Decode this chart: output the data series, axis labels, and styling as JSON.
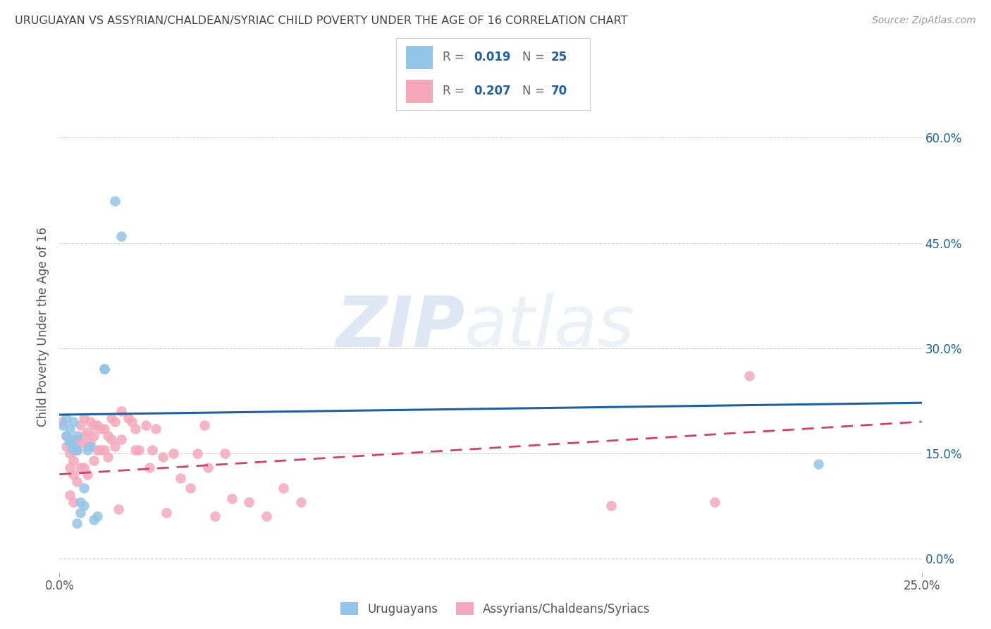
{
  "title": "URUGUAYAN VS ASSYRIAN/CHALDEAN/SYRIAC CHILD POVERTY UNDER THE AGE OF 16 CORRELATION CHART",
  "source": "Source: ZipAtlas.com",
  "ylabel": "Child Poverty Under the Age of 16",
  "xlim": [
    0.0,
    0.25
  ],
  "ylim": [
    -0.02,
    0.68
  ],
  "yticks": [
    0.0,
    0.15,
    0.3,
    0.45,
    0.6
  ],
  "ytick_labels": [
    "0.0%",
    "15.0%",
    "30.0%",
    "45.0%",
    "60.0%"
  ],
  "xticks": [
    0.0,
    0.25
  ],
  "xtick_labels": [
    "0.0%",
    "25.0%"
  ],
  "uruguayan_color": "#92C5E8",
  "assyrian_color": "#F5A8BC",
  "uruguayan_line_color": "#2060A0",
  "assyrian_line_color": "#D04070",
  "background_color": "#FFFFFF",
  "grid_color": "#CCCCCC",
  "title_color": "#444444",
  "uruguayan_x": [
    0.001,
    0.002,
    0.002,
    0.003,
    0.003,
    0.003,
    0.004,
    0.004,
    0.004,
    0.005,
    0.005,
    0.005,
    0.006,
    0.006,
    0.007,
    0.007,
    0.008,
    0.009,
    0.01,
    0.011,
    0.013,
    0.013,
    0.016,
    0.018,
    0.22
  ],
  "uruguayan_y": [
    0.19,
    0.2,
    0.175,
    0.185,
    0.165,
    0.17,
    0.16,
    0.155,
    0.195,
    0.175,
    0.155,
    0.05,
    0.08,
    0.065,
    0.1,
    0.075,
    0.155,
    0.16,
    0.055,
    0.06,
    0.27,
    0.27,
    0.51,
    0.46,
    0.135
  ],
  "assyrian_x": [
    0.001,
    0.002,
    0.002,
    0.003,
    0.003,
    0.003,
    0.003,
    0.004,
    0.004,
    0.004,
    0.004,
    0.005,
    0.005,
    0.005,
    0.006,
    0.006,
    0.006,
    0.007,
    0.007,
    0.007,
    0.008,
    0.008,
    0.008,
    0.009,
    0.009,
    0.01,
    0.01,
    0.01,
    0.011,
    0.011,
    0.012,
    0.012,
    0.013,
    0.013,
    0.014,
    0.014,
    0.015,
    0.015,
    0.016,
    0.016,
    0.017,
    0.018,
    0.018,
    0.02,
    0.021,
    0.022,
    0.022,
    0.023,
    0.025,
    0.026,
    0.027,
    0.028,
    0.03,
    0.031,
    0.033,
    0.035,
    0.038,
    0.04,
    0.042,
    0.043,
    0.045,
    0.048,
    0.05,
    0.055,
    0.06,
    0.065,
    0.07,
    0.16,
    0.19,
    0.2
  ],
  "assyrian_y": [
    0.195,
    0.175,
    0.16,
    0.17,
    0.15,
    0.13,
    0.09,
    0.155,
    0.14,
    0.12,
    0.08,
    0.17,
    0.155,
    0.11,
    0.19,
    0.165,
    0.13,
    0.2,
    0.175,
    0.13,
    0.18,
    0.16,
    0.12,
    0.195,
    0.165,
    0.19,
    0.175,
    0.14,
    0.19,
    0.155,
    0.185,
    0.155,
    0.185,
    0.155,
    0.175,
    0.145,
    0.2,
    0.17,
    0.195,
    0.16,
    0.07,
    0.21,
    0.17,
    0.2,
    0.195,
    0.185,
    0.155,
    0.155,
    0.19,
    0.13,
    0.155,
    0.185,
    0.145,
    0.065,
    0.15,
    0.115,
    0.1,
    0.15,
    0.19,
    0.13,
    0.06,
    0.15,
    0.085,
    0.08,
    0.06,
    0.1,
    0.08,
    0.075,
    0.08,
    0.26
  ],
  "uru_line_start_y": 0.205,
  "uru_line_end_y": 0.222,
  "ass_line_start_y": 0.12,
  "ass_line_end_y": 0.195
}
